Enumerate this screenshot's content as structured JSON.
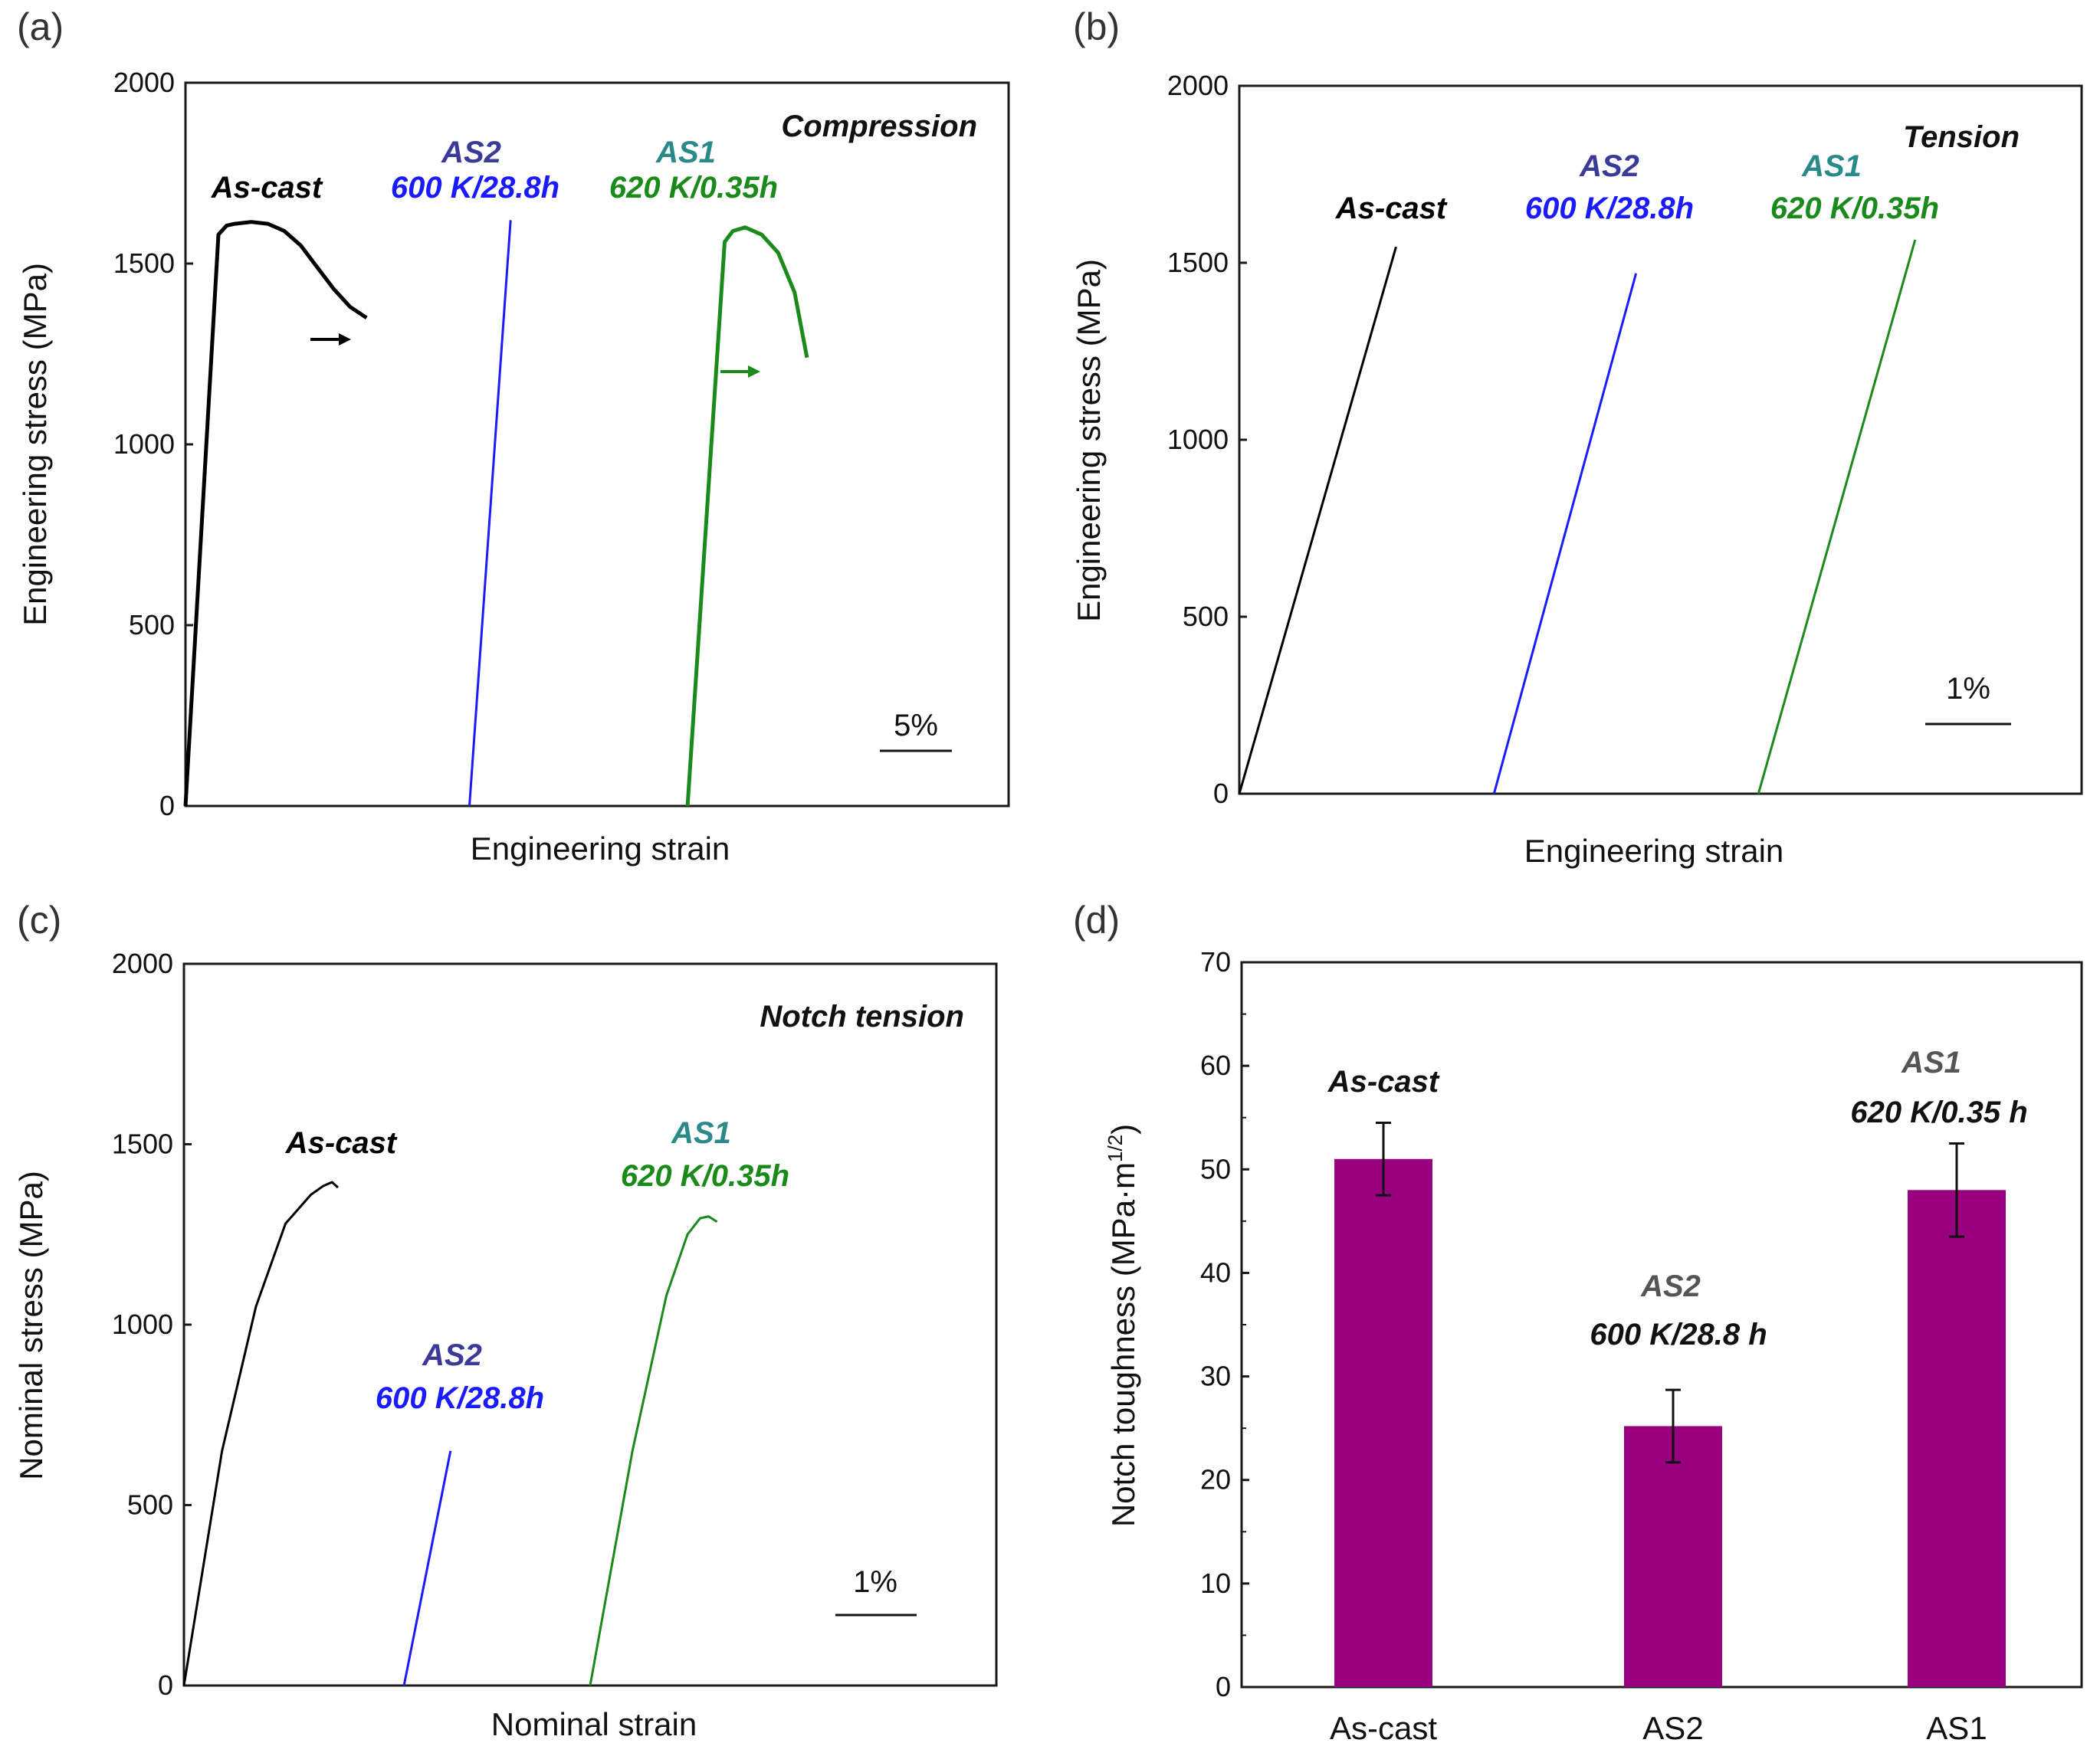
{
  "colors": {
    "as_cast": "#000000",
    "as2": "#1a1aff",
    "as2_label": "#3a3a99",
    "as1": "#1a8a1a",
    "as1_label": "#2a8a8a",
    "bar": "#990080"
  },
  "chart_data": [
    {
      "panel": "(a)",
      "type": "line",
      "annotation": "Compression",
      "xlabel": "Engineering strain",
      "ylabel": "Engineering stress (MPa)",
      "ylim": [
        0,
        2000
      ],
      "yticks": [
        "0",
        "500",
        "1000",
        "1500",
        "2000"
      ],
      "scale_bar": "5%",
      "series": [
        {
          "key": "as_cast",
          "label": "As-cast",
          "color": "#000000",
          "x": [
            0,
            4,
            5,
            6,
            8,
            10,
            12,
            14,
            16,
            18,
            20,
            22
          ],
          "y": [
            0,
            1580,
            1605,
            1610,
            1615,
            1610,
            1590,
            1550,
            1490,
            1430,
            1380,
            1350
          ],
          "x_unit": "% strain (offset)"
        },
        {
          "key": "as2",
          "label": "AS2",
          "sublabel": "600 K/28.8h",
          "color": "#1a1aff",
          "x": [
            34.5,
            39.5
          ],
          "y": [
            0,
            1620
          ]
        },
        {
          "key": "as1",
          "label": "AS1",
          "sublabel": "620 K/0.35h",
          "color": "#1a8a1a",
          "x": [
            61,
            65.5,
            66.5,
            68,
            70,
            72,
            74,
            75.5
          ],
          "y": [
            0,
            1560,
            1590,
            1600,
            1580,
            1530,
            1420,
            1240
          ]
        }
      ]
    },
    {
      "panel": "(b)",
      "type": "line",
      "annotation": "Tension",
      "xlabel": "Engineering strain",
      "ylabel": "Engineering stress (MPa)",
      "ylim": [
        0,
        2000
      ],
      "yticks": [
        "0",
        "500",
        "1000",
        "1500",
        "2000"
      ],
      "scale_bar": "1%",
      "series": [
        {
          "key": "as_cast",
          "label": "As-cast",
          "color": "#000000",
          "x": [
            0,
            1.6
          ],
          "y": [
            0,
            1545
          ]
        },
        {
          "key": "as2",
          "label": "AS2",
          "sublabel": "600 K/28.8h",
          "color": "#1a1aff",
          "x": [
            2.6,
            4.05
          ],
          "y": [
            0,
            1470
          ]
        },
        {
          "key": "as1",
          "label": "AS1",
          "sublabel": "620 K/0.35h",
          "color": "#1a8a1a",
          "x": [
            5.3,
            6.9
          ],
          "y": [
            0,
            1565
          ]
        }
      ]
    },
    {
      "panel": "(c)",
      "type": "line",
      "annotation": "Notch tension",
      "xlabel": "Nominal strain",
      "ylabel": "Nominal stress (MPa)",
      "ylim": [
        0,
        2000
      ],
      "yticks": [
        "0",
        "500",
        "1000",
        "1500",
        "2000"
      ],
      "scale_bar": "1%",
      "series": [
        {
          "key": "as_cast",
          "label": "As-cast",
          "color": "#000000",
          "x": [
            0,
            0.45,
            0.85,
            1.2,
            1.5,
            1.65,
            1.75,
            1.82
          ],
          "y": [
            0,
            650,
            1050,
            1280,
            1360,
            1385,
            1395,
            1380
          ]
        },
        {
          "key": "as2",
          "label": "AS2",
          "sublabel": "600 K/28.8h",
          "color": "#1a1aff",
          "x": [
            2.6,
            3.15
          ],
          "y": [
            0,
            650
          ]
        },
        {
          "key": "as1",
          "label": "AS1",
          "sublabel": "620 K/0.35h",
          "color": "#1a8a1a",
          "x": [
            4.8,
            5.3,
            5.7,
            5.95,
            6.1,
            6.2,
            6.3
          ],
          "y": [
            0,
            650,
            1080,
            1250,
            1295,
            1300,
            1285
          ]
        }
      ]
    },
    {
      "panel": "(d)",
      "type": "bar",
      "ylabel": "Notch toughness (MPa·m",
      "ylabel_sup": "1/2",
      "ylabel_close": ")",
      "ylim": [
        0,
        70
      ],
      "yticks": [
        "0",
        "10",
        "20",
        "30",
        "40",
        "50",
        "60",
        "70"
      ],
      "categories": [
        "As-cast",
        "AS2",
        "AS1"
      ],
      "values": [
        51,
        25.2,
        48
      ],
      "errors": [
        3.5,
        3.5,
        4.5
      ],
      "color": "#990080",
      "bar_labels": [
        {
          "title": "As-cast",
          "sub": ""
        },
        {
          "title": "AS2",
          "sub": "600 K/28.8 h"
        },
        {
          "title": "AS1",
          "sub": "620 K/0.35 h"
        }
      ]
    }
  ]
}
